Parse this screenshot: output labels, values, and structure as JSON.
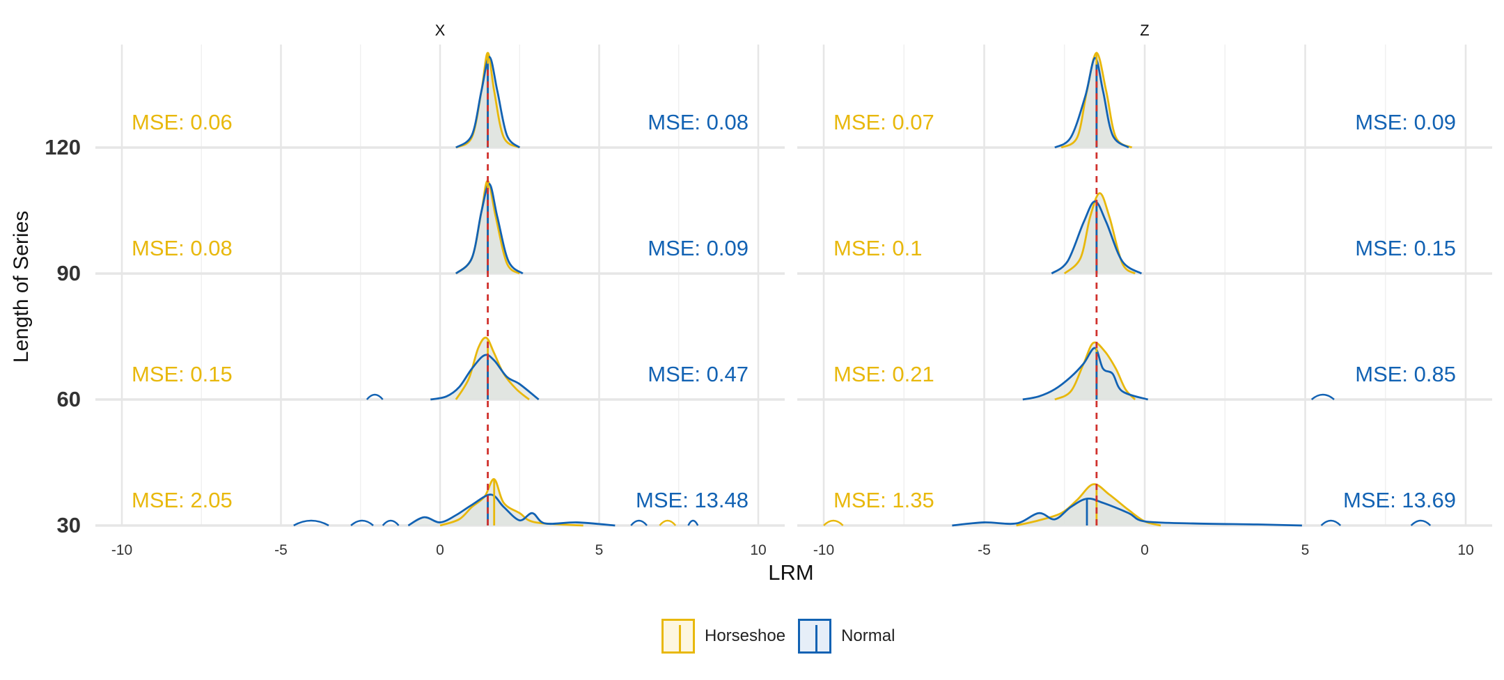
{
  "chart_data": {
    "type": "ridgeline-density",
    "xlabel": "LRM",
    "ylabel": "Length of Series",
    "xlim": [
      -10,
      10
    ],
    "x_ticks": [
      -10,
      -5,
      0,
      5,
      10
    ],
    "y_ticks": [
      30,
      60,
      90,
      120
    ],
    "grid": true,
    "legend_position": "bottom",
    "colors": {
      "Horseshoe": "#E8B80C",
      "Normal": "#1262B3",
      "reference_line": "#D0312D",
      "fill": "#DFE3DF"
    },
    "panels": [
      {
        "title": "X",
        "reference_x": 1.5,
        "rows": [
          {
            "length": 120,
            "horseshoe_mse": "MSE: 0.06",
            "normal_mse": "MSE: 0.08",
            "horseshoe_median": 1.5,
            "normal_median": 1.5,
            "horseshoe_curve": [
              [
                0.5,
                0.0
              ],
              [
                1.0,
                0.1
              ],
              [
                1.3,
                0.55
              ],
              [
                1.5,
                0.92
              ],
              [
                1.7,
                0.55
              ],
              [
                2.0,
                0.1
              ],
              [
                2.5,
                0.0
              ]
            ],
            "normal_curve": [
              [
                0.5,
                0.0
              ],
              [
                1.0,
                0.12
              ],
              [
                1.3,
                0.55
              ],
              [
                1.55,
                0.88
              ],
              [
                1.8,
                0.55
              ],
              [
                2.1,
                0.12
              ],
              [
                2.5,
                0.0
              ]
            ]
          },
          {
            "length": 90,
            "horseshoe_mse": "MSE: 0.08",
            "normal_mse": "MSE: 0.09",
            "horseshoe_median": 1.5,
            "normal_median": 1.5,
            "horseshoe_curve": [
              [
                0.5,
                0.0
              ],
              [
                1.0,
                0.15
              ],
              [
                1.3,
                0.6
              ],
              [
                1.5,
                0.9
              ],
              [
                1.75,
                0.55
              ],
              [
                2.1,
                0.1
              ],
              [
                2.5,
                0.0
              ]
            ],
            "normal_curve": [
              [
                0.5,
                0.0
              ],
              [
                1.0,
                0.15
              ],
              [
                1.3,
                0.6
              ],
              [
                1.55,
                0.87
              ],
              [
                1.8,
                0.55
              ],
              [
                2.15,
                0.12
              ],
              [
                2.6,
                0.0
              ]
            ]
          },
          {
            "length": 60,
            "horseshoe_mse": "MSE: 0.15",
            "normal_mse": "MSE: 0.47",
            "horseshoe_median": 1.5,
            "normal_median": 1.5,
            "horseshoe_curve": [
              [
                0.5,
                0.0
              ],
              [
                0.9,
                0.2
              ],
              [
                1.2,
                0.5
              ],
              [
                1.45,
                0.6
              ],
              [
                1.7,
                0.45
              ],
              [
                2.0,
                0.25
              ],
              [
                2.4,
                0.1
              ],
              [
                2.8,
                0.0
              ]
            ],
            "normal_curve": [
              [
                -0.3,
                0.0
              ],
              [
                0.2,
                0.03
              ],
              [
                0.6,
                0.12
              ],
              [
                1.0,
                0.3
              ],
              [
                1.4,
                0.43
              ],
              [
                1.7,
                0.38
              ],
              [
                2.1,
                0.22
              ],
              [
                2.5,
                0.15
              ],
              [
                3.1,
                0.0
              ]
            ],
            "normal_blips": [
              [
                -2.3,
                -1.8
              ]
            ]
          },
          {
            "length": 30,
            "horseshoe_mse": "MSE: 2.05",
            "normal_mse": "MSE: 13.48",
            "horseshoe_median": 1.7,
            "normal_median": 1.5,
            "horseshoe_curve": [
              [
                0.0,
                0.0
              ],
              [
                0.6,
                0.06
              ],
              [
                1.0,
                0.18
              ],
              [
                1.4,
                0.28
              ],
              [
                1.7,
                0.45
              ],
              [
                2.0,
                0.22
              ],
              [
                2.5,
                0.12
              ],
              [
                3.0,
                0.03
              ],
              [
                4.5,
                0.0
              ]
            ],
            "normal_curve": [
              [
                -1.0,
                0.0
              ],
              [
                -0.5,
                0.08
              ],
              [
                0.0,
                0.03
              ],
              [
                0.5,
                0.1
              ],
              [
                1.0,
                0.2
              ],
              [
                1.6,
                0.3
              ],
              [
                2.0,
                0.18
              ],
              [
                2.5,
                0.05
              ],
              [
                2.9,
                0.12
              ],
              [
                3.3,
                0.02
              ],
              [
                4.3,
                0.03
              ],
              [
                5.5,
                0.0
              ]
            ],
            "normal_blips": [
              [
                -4.6,
                -3.5
              ],
              [
                -2.8,
                -2.1
              ],
              [
                -1.8,
                -1.3
              ],
              [
                6.0,
                6.5
              ],
              [
                7.8,
                8.1
              ]
            ],
            "horseshoe_blips": [
              [
                6.9,
                7.4
              ]
            ]
          }
        ]
      },
      {
        "title": "Z",
        "reference_x": -1.5,
        "rows": [
          {
            "length": 120,
            "horseshoe_mse": "MSE: 0.07",
            "normal_mse": "MSE: 0.09",
            "horseshoe_median": -1.5,
            "normal_median": -1.5,
            "horseshoe_curve": [
              [
                -2.6,
                0.0
              ],
              [
                -2.1,
                0.1
              ],
              [
                -1.8,
                0.55
              ],
              [
                -1.5,
                0.92
              ],
              [
                -1.2,
                0.55
              ],
              [
                -0.9,
                0.1
              ],
              [
                -0.4,
                0.0
              ]
            ],
            "normal_curve": [
              [
                -2.8,
                0.0
              ],
              [
                -2.3,
                0.1
              ],
              [
                -1.85,
                0.5
              ],
              [
                -1.55,
                0.87
              ],
              [
                -1.3,
                0.55
              ],
              [
                -1.0,
                0.12
              ],
              [
                -0.5,
                0.0
              ]
            ]
          },
          {
            "length": 90,
            "horseshoe_mse": "MSE: 0.1",
            "normal_mse": "MSE: 0.15",
            "horseshoe_median": -1.5,
            "normal_median": -1.5,
            "horseshoe_curve": [
              [
                -2.5,
                0.0
              ],
              [
                -2.0,
                0.15
              ],
              [
                -1.7,
                0.55
              ],
              [
                -1.4,
                0.78
              ],
              [
                -1.1,
                0.55
              ],
              [
                -0.7,
                0.1
              ],
              [
                -0.3,
                0.0
              ]
            ],
            "normal_curve": [
              [
                -2.9,
                0.0
              ],
              [
                -2.4,
                0.12
              ],
              [
                -1.9,
                0.5
              ],
              [
                -1.55,
                0.7
              ],
              [
                -1.2,
                0.5
              ],
              [
                -0.7,
                0.12
              ],
              [
                -0.1,
                0.0
              ]
            ]
          },
          {
            "length": 60,
            "horseshoe_mse": "MSE: 0.21",
            "normal_mse": "MSE: 0.85",
            "horseshoe_median": -1.5,
            "normal_median": -1.5,
            "horseshoe_curve": [
              [
                -2.8,
                0.0
              ],
              [
                -2.3,
                0.08
              ],
              [
                -1.9,
                0.35
              ],
              [
                -1.6,
                0.55
              ],
              [
                -1.25,
                0.47
              ],
              [
                -0.9,
                0.3
              ],
              [
                -0.6,
                0.1
              ],
              [
                -0.3,
                0.0
              ]
            ],
            "normal_curve": [
              [
                -3.8,
                0.0
              ],
              [
                -3.3,
                0.03
              ],
              [
                -2.8,
                0.1
              ],
              [
                -2.3,
                0.22
              ],
              [
                -1.9,
                0.35
              ],
              [
                -1.55,
                0.5
              ],
              [
                -1.3,
                0.3
              ],
              [
                -1.0,
                0.25
              ],
              [
                -0.7,
                0.08
              ],
              [
                0.1,
                0.0
              ]
            ],
            "normal_blips": [
              [
                5.2,
                5.9
              ]
            ]
          },
          {
            "length": 30,
            "horseshoe_mse": "MSE: 1.35",
            "normal_mse": "MSE: 13.69",
            "horseshoe_median": -1.5,
            "normal_median": -1.8,
            "horseshoe_curve": [
              [
                -4.0,
                0.0
              ],
              [
                -3.3,
                0.05
              ],
              [
                -2.6,
                0.12
              ],
              [
                -2.1,
                0.25
              ],
              [
                -1.6,
                0.4
              ],
              [
                -1.1,
                0.3
              ],
              [
                -0.5,
                0.15
              ],
              [
                0.0,
                0.04
              ],
              [
                0.5,
                0.0
              ]
            ],
            "normal_curve": [
              [
                -6.0,
                0.0
              ],
              [
                -5.0,
                0.03
              ],
              [
                -4.0,
                0.02
              ],
              [
                -3.3,
                0.12
              ],
              [
                -2.8,
                0.06
              ],
              [
                -2.3,
                0.18
              ],
              [
                -1.8,
                0.26
              ],
              [
                -1.3,
                0.22
              ],
              [
                -0.5,
                0.12
              ],
              [
                0.0,
                0.04
              ],
              [
                1.5,
                0.02
              ],
              [
                3.5,
                0.01
              ],
              [
                4.9,
                0.0
              ]
            ],
            "normal_blips": [
              [
                5.5,
                6.1
              ],
              [
                8.3,
                8.9
              ]
            ],
            "horseshoe_blips": [
              [
                -10.0,
                -9.4
              ]
            ]
          }
        ]
      }
    ]
  },
  "legend": {
    "items": [
      {
        "label": "Horseshoe",
        "color": "#E8B80C",
        "fill": "#FDF6E0"
      },
      {
        "label": "Normal",
        "color": "#1262B3",
        "fill": "#E6EEF8"
      }
    ]
  }
}
